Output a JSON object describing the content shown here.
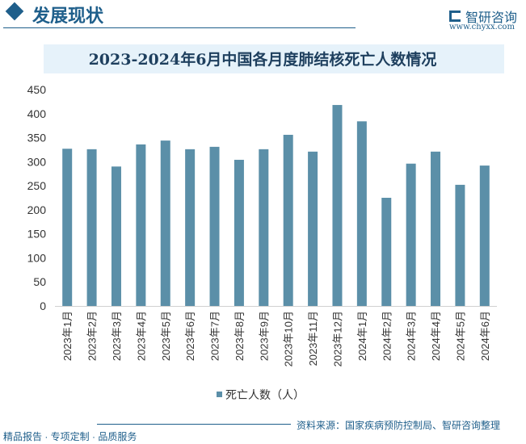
{
  "header": {
    "title": "发展现状",
    "logo_text": "智研咨询",
    "url": "www.chyxx.com"
  },
  "footer": {
    "left": "精品报告 · 专项定制 · 品质服务",
    "source": "资料来源：国家疾病预防控制局、智研咨询整理"
  },
  "colors": {
    "bar": "#5b8fa8",
    "title_bg": "#e6f2fa"
  },
  "chart_data": {
    "type": "bar",
    "title": "2023-2024年6月中国各月度肺结核死亡人数情况",
    "categories": [
      "2023年1月",
      "2023年2月",
      "2023年3月",
      "2023年4月",
      "2023年5月",
      "2023年6月",
      "2023年7月",
      "2023年8月",
      "2023年9月",
      "2023年10月",
      "2023年11月",
      "2023年12月",
      "2024年1月",
      "2024年2月",
      "2024年3月",
      "2024年4月",
      "2024年5月",
      "2024年6月"
    ],
    "series": [
      {
        "name": "死亡人数（人）",
        "values": [
          327,
          326,
          290,
          336,
          344,
          326,
          331,
          304,
          326,
          356,
          321,
          418,
          384,
          225,
          296,
          321,
          252,
          292
        ]
      }
    ],
    "ylim": [
      0,
      450
    ],
    "yticks": [
      0,
      50,
      100,
      150,
      200,
      250,
      300,
      350,
      400,
      450
    ],
    "grid": false,
    "legend": "bottom"
  }
}
